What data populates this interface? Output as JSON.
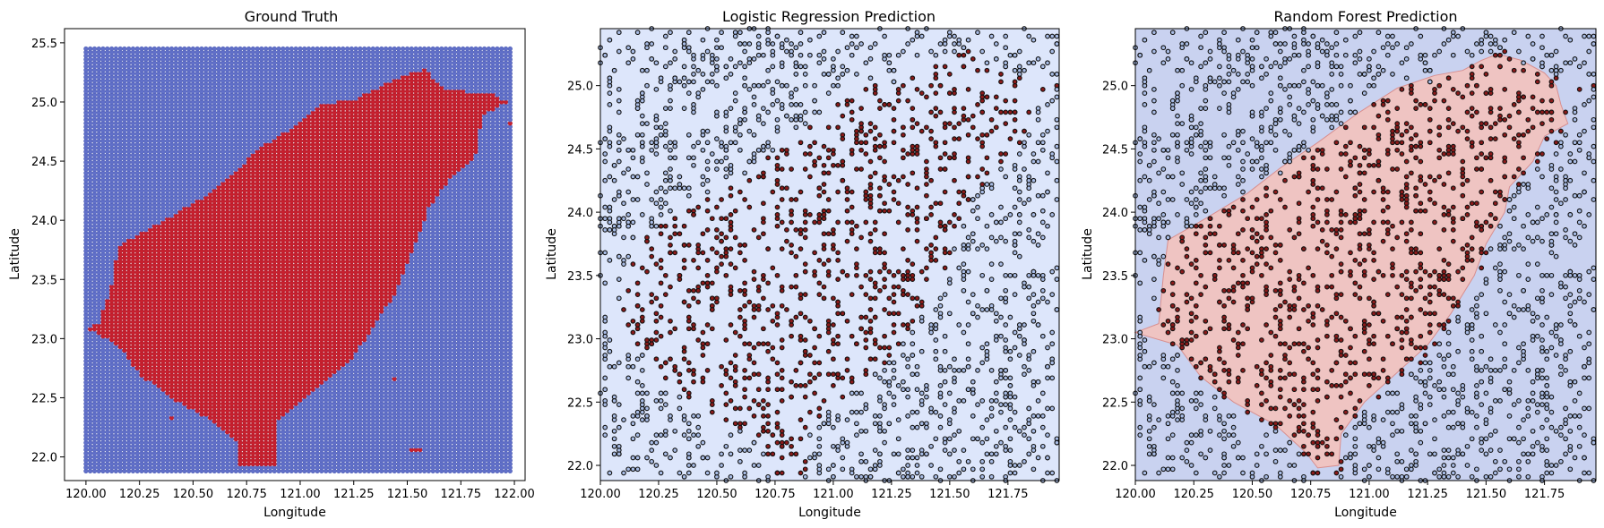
{
  "colors": {
    "land": "#c8202e",
    "sea": "#6170c9",
    "pt_land": "#8b1a1a",
    "pt_sea": "#a9bde6",
    "pt_edge": "#111111",
    "lr_bg": "#dde6fb",
    "rf_bg": "#c9d2f0",
    "rf_land": "#efc4c2",
    "rf_edge": "#d88f8f"
  },
  "chart_data": [
    {
      "type": "scatter",
      "title": "Ground Truth",
      "xlabel": "Longitude",
      "ylabel": "Latitude",
      "xlim": [
        119.9,
        122.05
      ],
      "ylim": [
        21.8,
        25.62
      ],
      "xticks": [
        "120.00",
        "120.25",
        "120.50",
        "120.75",
        "121.00",
        "121.25",
        "121.50",
        "121.75",
        "122.00"
      ],
      "yticks": [
        "22.0",
        "22.5",
        "23.0",
        "23.5",
        "24.0",
        "24.5",
        "25.0",
        "25.5"
      ],
      "grid": false,
      "grid_spec": {
        "lon_start": 120.0,
        "lon_end": 121.98,
        "lon_step": 0.02,
        "lat_start": 21.88,
        "lat_end": 25.45,
        "lat_step": 0.03
      },
      "series": [
        {
          "class": "land",
          "color": "#c8202e",
          "region": [
            [
              120.06,
              23.12
            ],
            [
              120.12,
              23.45
            ],
            [
              120.15,
              23.78
            ],
            [
              120.35,
              23.98
            ],
            [
              120.55,
              24.2
            ],
            [
              120.7,
              24.4
            ],
            [
              120.8,
              24.6
            ],
            [
              121.0,
              24.82
            ],
            [
              121.1,
              24.98
            ],
            [
              121.25,
              25.02
            ],
            [
              121.45,
              25.2
            ],
            [
              121.58,
              25.28
            ],
            [
              121.68,
              25.1
            ],
            [
              121.88,
              25.08
            ],
            [
              121.97,
              25.0
            ],
            [
              121.85,
              24.88
            ],
            [
              121.82,
              24.55
            ],
            [
              121.7,
              24.35
            ],
            [
              121.6,
              24.1
            ],
            [
              121.55,
              23.85
            ],
            [
              121.45,
              23.4
            ],
            [
              121.25,
              22.85
            ],
            [
              121.05,
              22.55
            ],
            [
              120.9,
              22.3
            ],
            [
              120.88,
              21.93
            ],
            [
              120.72,
              21.93
            ],
            [
              120.7,
              22.15
            ],
            [
              120.55,
              22.35
            ],
            [
              120.4,
              22.5
            ],
            [
              120.25,
              22.7
            ],
            [
              120.15,
              22.95
            ],
            [
              120.05,
              23.05
            ],
            [
              120.0,
              23.1
            ]
          ],
          "islands": [
            [
              120.4,
              22.33
            ],
            [
              121.55,
              22.06
            ],
            [
              121.53,
              22.06
            ],
            [
              121.44,
              22.66
            ],
            [
              121.98,
              24.82
            ]
          ]
        },
        {
          "class": "sea",
          "color": "#6170c9"
        }
      ]
    },
    {
      "type": "scatter",
      "title": "Logistic Regression Prediction",
      "xlabel": "Longitude",
      "ylabel": "Latitude",
      "xlim": [
        120.0,
        121.97
      ],
      "ylim": [
        21.88,
        25.45
      ],
      "xticks": [
        "120.00",
        "120.25",
        "120.50",
        "120.75",
        "121.00",
        "121.25",
        "121.50",
        "121.75"
      ],
      "yticks": [
        "22.0",
        "22.5",
        "23.0",
        "23.5",
        "24.0",
        "24.5",
        "25.0"
      ],
      "grid": false,
      "background_class": "sea",
      "n_points": 2200,
      "seed": 12345
    },
    {
      "type": "scatter",
      "title": "Random Forest Prediction",
      "xlabel": "Longitude",
      "ylabel": "Latitude",
      "xlim": [
        120.0,
        121.97
      ],
      "ylim": [
        21.88,
        25.45
      ],
      "xticks": [
        "120.00",
        "120.25",
        "120.50",
        "120.75",
        "121.00",
        "121.25",
        "121.50",
        "121.75"
      ],
      "yticks": [
        "22.0",
        "22.5",
        "23.0",
        "23.5",
        "24.0",
        "24.5",
        "25.0"
      ],
      "grid": false,
      "decision_region": [
        [
          120.0,
          23.05
        ],
        [
          120.1,
          23.12
        ],
        [
          120.12,
          23.5
        ],
        [
          120.14,
          23.78
        ],
        [
          120.3,
          23.95
        ],
        [
          120.48,
          24.15
        ],
        [
          120.62,
          24.35
        ],
        [
          120.78,
          24.55
        ],
        [
          120.95,
          24.78
        ],
        [
          121.12,
          24.98
        ],
        [
          121.28,
          25.08
        ],
        [
          121.4,
          25.12
        ],
        [
          121.48,
          25.2
        ],
        [
          121.55,
          25.25
        ],
        [
          121.65,
          25.2
        ],
        [
          121.75,
          25.1
        ],
        [
          121.8,
          25.0
        ],
        [
          121.82,
          24.85
        ],
        [
          121.85,
          24.7
        ],
        [
          121.75,
          24.6
        ],
        [
          121.7,
          24.4
        ],
        [
          121.6,
          24.2
        ],
        [
          121.58,
          24.0
        ],
        [
          121.5,
          23.75
        ],
        [
          121.45,
          23.5
        ],
        [
          121.35,
          23.2
        ],
        [
          121.25,
          22.95
        ],
        [
          121.1,
          22.7
        ],
        [
          120.98,
          22.5
        ],
        [
          120.88,
          22.25
        ],
        [
          120.87,
          22.0
        ],
        [
          120.78,
          21.98
        ],
        [
          120.73,
          22.1
        ],
        [
          120.6,
          22.32
        ],
        [
          120.42,
          22.5
        ],
        [
          120.28,
          22.7
        ],
        [
          120.18,
          22.95
        ],
        [
          120.05,
          23.02
        ]
      ],
      "n_points": 2200,
      "seed": 12345
    }
  ]
}
